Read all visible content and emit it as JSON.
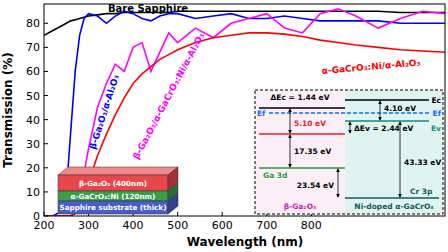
{
  "chart_data": {
    "type": "line",
    "x_label": "Wavelength (nm)",
    "y_label": "Transmission (%)",
    "x": [
      200,
      220,
      240,
      250,
      260,
      270,
      280,
      290,
      300,
      320,
      340,
      360,
      380,
      400,
      420,
      440,
      460,
      480,
      500,
      540,
      580,
      620,
      660,
      700,
      740,
      780,
      820,
      860,
      900,
      950,
      1000,
      1050,
      1100
    ],
    "xlim": [
      200,
      1100
    ],
    "xticks": [
      200,
      300,
      400,
      500,
      600,
      700,
      800
    ],
    "ylim": [
      0,
      88
    ],
    "yticks": [
      0,
      10,
      20,
      30,
      40,
      50,
      60,
      70,
      80
    ],
    "grid": false,
    "series": [
      {
        "name": "Bare Sapphire",
        "color": "#000000",
        "values": [
          75,
          77,
          79,
          80,
          81,
          81.5,
          82,
          82.5,
          83,
          83.5,
          84,
          84,
          84.5,
          84.5,
          84.5,
          84.5,
          84.5,
          84.5,
          85,
          85,
          85,
          85,
          85,
          85,
          85,
          85,
          85,
          85,
          85,
          85,
          84.5,
          84.5,
          84.5
        ]
      },
      {
        "name": "β-Ga₂O₃/α-Al₂O₃",
        "color": "#0000ff",
        "values": [
          0,
          0,
          2,
          10,
          35,
          60,
          75,
          82,
          84,
          83,
          80,
          83,
          85,
          84,
          82,
          81,
          83,
          84,
          84,
          82,
          83,
          84,
          82,
          82,
          83,
          82,
          81,
          81,
          81,
          81,
          80,
          80,
          80
        ]
      },
      {
        "name": "β-Ga₂O₃/α-GaCrO₃:Ni/α-Al₂O₃",
        "color": "#ff00ff",
        "values": [
          0,
          0,
          0,
          0,
          0,
          2,
          8,
          18,
          28,
          45,
          55,
          63,
          60,
          70,
          72,
          60,
          68,
          76,
          72,
          78,
          74,
          80,
          82,
          84,
          78,
          76,
          84,
          86,
          83,
          78,
          82,
          85,
          84
        ]
      },
      {
        "name": "α-GaCrO₃:Ni/α-Al₂O₃",
        "color": "#ff0000",
        "values": [
          0,
          0,
          0,
          0,
          0,
          1,
          3,
          8,
          14,
          25,
          34,
          42,
          49,
          55,
          59,
          62,
          65,
          67,
          69,
          72,
          74,
          75,
          76,
          76,
          75.5,
          74.5,
          73,
          72,
          71,
          70,
          69,
          68.5,
          68
        ]
      }
    ]
  },
  "layer_stack": {
    "layers": [
      {
        "label": "β-Ga₂O₃ (400nm)",
        "color": "#e8484c"
      },
      {
        "label": "α-GaCrO₃:Ni (120nm)",
        "color": "#3a9e48"
      },
      {
        "label": "Sapphire substrate (thick)",
        "color": "#4a5cc8"
      }
    ]
  },
  "band_diagram": {
    "materials": [
      "β-Ga₂O₃",
      "Ni-doped α-GaCrO₃"
    ],
    "delta_ec": "ΔEc = 1.44 eV",
    "delta_ev": "ΔEv = 2.44 eV",
    "gap_left": "5.10 eV",
    "gap_right": "4.10 eV",
    "core_left": "17.35 eV",
    "core_right": "43.33 eV",
    "core_offset": "23.54 eV",
    "level_left": "Ga 3d",
    "level_right": "Cr 3p",
    "ec": "Ec",
    "ef": "Ef",
    "ev": "Ev"
  }
}
